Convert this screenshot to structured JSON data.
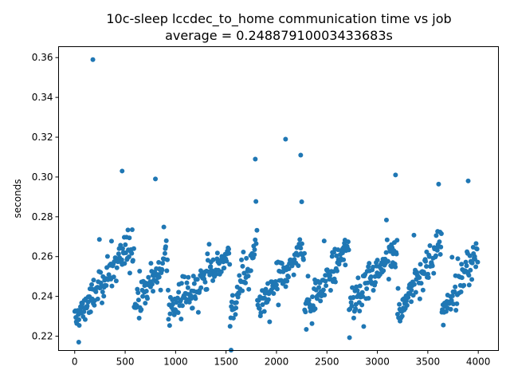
{
  "chart_data": {
    "type": "scatter",
    "title": "10c-sleep lccdec_to_home communication time vs job",
    "subtitle": "average = 0.24887910003433683s",
    "xlabel": "",
    "ylabel": "seconds",
    "xlim": [
      -160,
      4200
    ],
    "ylim": [
      0.2128,
      0.3655
    ],
    "xticks": [
      0,
      500,
      1000,
      1500,
      2000,
      2500,
      3000,
      3500,
      4000
    ],
    "yticks": [
      0.22,
      0.24,
      0.26,
      0.28,
      0.3,
      0.32,
      0.34,
      0.36
    ],
    "ytick_labels": [
      "0.22",
      "0.24",
      "0.26",
      "0.28",
      "0.30",
      "0.32",
      "0.34",
      "0.36"
    ],
    "grid": false,
    "legend": "none",
    "marker_color": "#1f77b4",
    "notable_points": [
      {
        "x": 180,
        "y": 0.359
      },
      {
        "x": 470,
        "y": 0.303
      },
      {
        "x": 2090,
        "y": 0.319
      },
      {
        "x": 2240,
        "y": 0.311
      },
      {
        "x": 1790,
        "y": 0.309
      },
      {
        "x": 3180,
        "y": 0.301
      },
      {
        "x": 800,
        "y": 0.299
      },
      {
        "x": 3900,
        "y": 0.298
      },
      {
        "x": 1550,
        "y": 0.213
      },
      {
        "x": 40,
        "y": 0.217
      }
    ],
    "series": [
      {
        "description_note": "",
        "cycles": [
          {
            "x_start": 0,
            "x_end": 590,
            "y_start": 0.228,
            "y_end": 0.268
          },
          {
            "x_start": 590,
            "y_start": 0.234,
            "x_end": 930,
            "y_end": 0.262
          },
          {
            "x_start": 930,
            "x_end": 1540,
            "y_start": 0.232,
            "y_end": 0.262
          },
          {
            "x_start": 1540,
            "x_end": 1810,
            "y_start": 0.232,
            "y_end": 0.265
          },
          {
            "x_start": 1810,
            "x_end": 2280,
            "y_start": 0.234,
            "y_end": 0.266
          },
          {
            "x_start": 2280,
            "x_end": 2720,
            "y_start": 0.232,
            "y_end": 0.265
          },
          {
            "x_start": 2720,
            "x_end": 3200,
            "y_start": 0.234,
            "y_end": 0.266
          },
          {
            "x_start": 3200,
            "x_end": 3640,
            "y_start": 0.231,
            "y_end": 0.268
          },
          {
            "x_start": 3640,
            "x_end": 4000,
            "y_start": 0.232,
            "y_end": 0.262
          }
        ]
      }
    ]
  }
}
